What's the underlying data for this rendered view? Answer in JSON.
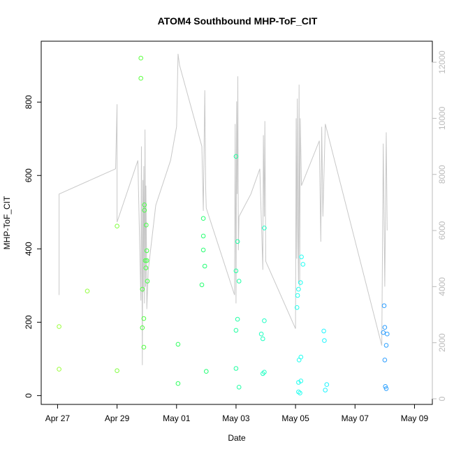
{
  "chart_data": {
    "type": "scatter",
    "title": "ATOM4 Southbound MHP-ToF_CIT",
    "xlabel": "Date",
    "ylabel": "MHP-ToF_CIT",
    "x_tick_labels": [
      "Apr 27",
      "Apr 29",
      "May 01",
      "May 03",
      "May 05",
      "May 07",
      "May 09"
    ],
    "y_ticks": [
      0,
      200,
      400,
      600,
      800
    ],
    "y_right_ticks": [
      0,
      2000,
      4000,
      6000,
      8000,
      10000,
      12000
    ],
    "xlim": [
      -0.55,
      12.6
    ],
    "ylim": [
      -24,
      966
    ],
    "y_right_lim": [
      -200,
      12750
    ],
    "grid": false,
    "x_units": "days since Apr 27",
    "points": [
      [
        0.05,
        188,
        "#9cff3e"
      ],
      [
        0.05,
        72,
        "#9cff3e"
      ],
      [
        1.0,
        285,
        "#93ff40"
      ],
      [
        2.0,
        462,
        "#80ff40"
      ],
      [
        2.0,
        68,
        "#80ff40"
      ],
      [
        2.8,
        920,
        "#5cff40"
      ],
      [
        2.8,
        865,
        "#5cff40"
      ],
      [
        2.85,
        290,
        "#50ff40"
      ],
      [
        2.85,
        185,
        "#50ff40"
      ],
      [
        2.9,
        210,
        "#50ff40"
      ],
      [
        2.9,
        132,
        "#50ff40"
      ],
      [
        2.92,
        520,
        "#48ff45"
      ],
      [
        2.92,
        505,
        "#48ff45"
      ],
      [
        2.95,
        368,
        "#48ff45"
      ],
      [
        2.97,
        348,
        "#48ff45"
      ],
      [
        2.98,
        465,
        "#45ff48"
      ],
      [
        3.0,
        395,
        "#45ff48"
      ],
      [
        3.0,
        368,
        "#45ff48"
      ],
      [
        3.02,
        312,
        "#45ff48"
      ],
      [
        4.05,
        140,
        "#30ff60"
      ],
      [
        4.05,
        33,
        "#30ff60"
      ],
      [
        4.85,
        302,
        "#25ff70"
      ],
      [
        4.9,
        483,
        "#25ff70"
      ],
      [
        4.9,
        435,
        "#25ff70"
      ],
      [
        4.9,
        397,
        "#25ff70"
      ],
      [
        4.95,
        353,
        "#22ff75"
      ],
      [
        5.0,
        66,
        "#22ff75"
      ],
      [
        6.0,
        652,
        "#20ffa0"
      ],
      [
        6.0,
        340,
        "#20ffa0"
      ],
      [
        6.0,
        178,
        "#20ffa0"
      ],
      [
        6.0,
        74,
        "#20ffa0"
      ],
      [
        6.05,
        420,
        "#20ffa5"
      ],
      [
        6.05,
        208,
        "#20ffa5"
      ],
      [
        6.1,
        23,
        "#20ffa5"
      ],
      [
        6.1,
        312,
        "#20ffa5"
      ],
      [
        6.85,
        168,
        "#20ffc0"
      ],
      [
        6.9,
        155,
        "#20ffc0"
      ],
      [
        6.9,
        60,
        "#20ffc0"
      ],
      [
        6.95,
        457,
        "#20ffc5"
      ],
      [
        6.95,
        204,
        "#20ffc5"
      ],
      [
        6.95,
        64,
        "#20ffc5"
      ],
      [
        8.05,
        240,
        "#20ffee"
      ],
      [
        8.07,
        273,
        "#20ffee"
      ],
      [
        8.1,
        290,
        "#20ffee"
      ],
      [
        8.1,
        10,
        "#20ffee"
      ],
      [
        8.1,
        36,
        "#20ffee"
      ],
      [
        8.12,
        97,
        "#20fff0"
      ],
      [
        8.15,
        7,
        "#20fff0"
      ],
      [
        8.17,
        308,
        "#20fff0"
      ],
      [
        8.18,
        40,
        "#20fff0"
      ],
      [
        8.18,
        105,
        "#20fff0"
      ],
      [
        8.2,
        378,
        "#20fff2"
      ],
      [
        8.25,
        358,
        "#20fff2"
      ],
      [
        8.95,
        176,
        "#20f5ff"
      ],
      [
        8.97,
        150,
        "#20f5ff"
      ],
      [
        9.0,
        15,
        "#20f5ff"
      ],
      [
        9.05,
        30,
        "#20f5ff"
      ],
      [
        10.95,
        172,
        "#2a9cff"
      ],
      [
        10.98,
        245,
        "#2a9cff"
      ],
      [
        11.0,
        186,
        "#2a9cff"
      ],
      [
        11.0,
        97,
        "#2a9cff"
      ],
      [
        11.02,
        25,
        "#2aa0ff"
      ],
      [
        11.05,
        137,
        "#2aa0ff"
      ],
      [
        11.05,
        19,
        "#2aa0ff"
      ],
      [
        11.08,
        168,
        "#2aa0ff"
      ]
    ],
    "line_series": {
      "axis": "right",
      "color": "#c8c8c8",
      "points": [
        [
          0.05,
          3700
        ],
        [
          0.05,
          7300
        ],
        [
          1.95,
          8200
        ],
        [
          2.0,
          10500
        ],
        [
          2.0,
          6300
        ],
        [
          2.7,
          8500
        ],
        [
          2.8,
          3500
        ],
        [
          2.82,
          9000
        ],
        [
          2.85,
          1200
        ],
        [
          2.87,
          7800
        ],
        [
          2.88,
          3800
        ],
        [
          2.9,
          8300
        ],
        [
          2.92,
          3400
        ],
        [
          2.94,
          9600
        ],
        [
          2.96,
          4000
        ],
        [
          2.97,
          7600
        ],
        [
          2.99,
          5200
        ],
        [
          3.0,
          3200
        ],
        [
          3.05,
          4600
        ],
        [
          3.3,
          6900
        ],
        [
          3.8,
          8500
        ],
        [
          4.0,
          9700
        ],
        [
          4.05,
          12300
        ],
        [
          4.1,
          11900
        ],
        [
          4.85,
          9000
        ],
        [
          4.9,
          6700
        ],
        [
          4.95,
          11000
        ],
        [
          4.98,
          7500
        ],
        [
          5.0,
          6800
        ],
        [
          5.95,
          3700
        ],
        [
          5.97,
          9800
        ],
        [
          6.0,
          3400
        ],
        [
          6.02,
          10600
        ],
        [
          6.04,
          7300
        ],
        [
          6.06,
          11500
        ],
        [
          6.08,
          5300
        ],
        [
          6.1,
          6500
        ],
        [
          6.5,
          7300
        ],
        [
          6.8,
          8200
        ],
        [
          6.9,
          4600
        ],
        [
          6.92,
          9400
        ],
        [
          6.95,
          6500
        ],
        [
          6.97,
          9900
        ],
        [
          7.0,
          4900
        ],
        [
          8.0,
          2500
        ],
        [
          8.02,
          10000
        ],
        [
          8.04,
          5000
        ],
        [
          8.06,
          10700
        ],
        [
          8.08,
          6000
        ],
        [
          8.1,
          4100
        ],
        [
          8.12,
          11200
        ],
        [
          8.14,
          4000
        ],
        [
          8.16,
          10000
        ],
        [
          8.2,
          7600
        ],
        [
          8.8,
          9200
        ],
        [
          8.85,
          5600
        ],
        [
          8.88,
          9700
        ],
        [
          8.92,
          6500
        ],
        [
          9.0,
          9800
        ],
        [
          10.9,
          1900
        ],
        [
          10.95,
          9100
        ],
        [
          11.0,
          4000
        ],
        [
          11.05,
          9500
        ],
        [
          11.08,
          6000
        ]
      ]
    }
  }
}
